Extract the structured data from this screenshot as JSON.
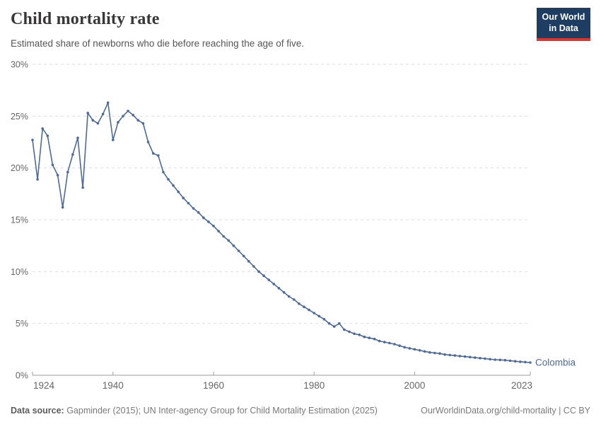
{
  "header": {
    "title": "Child mortality rate",
    "subtitle": "Estimated share of newborns who die before reaching the age of five.",
    "logo": {
      "line1": "Our World",
      "line2": "in Data"
    }
  },
  "chart_data": {
    "type": "line",
    "title": "Child mortality rate",
    "series_name": "Colombia",
    "unit": "%",
    "x": [
      1924,
      1925,
      1926,
      1927,
      1928,
      1929,
      1930,
      1931,
      1932,
      1933,
      1934,
      1935,
      1936,
      1937,
      1938,
      1939,
      1940,
      1941,
      1942,
      1943,
      1944,
      1945,
      1946,
      1947,
      1948,
      1949,
      1950,
      1951,
      1952,
      1953,
      1954,
      1955,
      1956,
      1957,
      1958,
      1959,
      1960,
      1961,
      1962,
      1963,
      1964,
      1965,
      1966,
      1967,
      1968,
      1969,
      1970,
      1971,
      1972,
      1973,
      1974,
      1975,
      1976,
      1977,
      1978,
      1979,
      1980,
      1981,
      1982,
      1983,
      1984,
      1985,
      1986,
      1987,
      1988,
      1989,
      1990,
      1991,
      1992,
      1993,
      1994,
      1995,
      1996,
      1997,
      1998,
      1999,
      2000,
      2001,
      2002,
      2003,
      2004,
      2005,
      2006,
      2007,
      2008,
      2009,
      2010,
      2011,
      2012,
      2013,
      2014,
      2015,
      2016,
      2017,
      2018,
      2019,
      2020,
      2021,
      2022,
      2023
    ],
    "values": [
      22.7,
      18.9,
      23.8,
      23.1,
      20.3,
      19.3,
      16.2,
      19.6,
      21.3,
      22.9,
      18.1,
      25.3,
      24.6,
      24.3,
      25.2,
      26.3,
      22.7,
      24.4,
      25.0,
      25.5,
      25.1,
      24.6,
      24.3,
      22.5,
      21.4,
      21.2,
      19.6,
      18.9,
      18.3,
      17.7,
      17.1,
      16.6,
      16.1,
      15.7,
      15.2,
      14.8,
      14.4,
      13.9,
      13.4,
      13.0,
      12.5,
      12.0,
      11.5,
      11.0,
      10.5,
      10.0,
      9.6,
      9.2,
      8.8,
      8.4,
      8.0,
      7.6,
      7.3,
      6.9,
      6.6,
      6.3,
      6.0,
      5.7,
      5.4,
      5.0,
      4.7,
      5.0,
      4.4,
      4.2,
      4.0,
      3.9,
      3.7,
      3.6,
      3.5,
      3.3,
      3.2,
      3.1,
      3.0,
      2.85,
      2.7,
      2.6,
      2.5,
      2.4,
      2.3,
      2.2,
      2.15,
      2.1,
      2.0,
      1.95,
      1.9,
      1.85,
      1.8,
      1.75,
      1.7,
      1.65,
      1.6,
      1.55,
      1.5,
      1.48,
      1.45,
      1.4,
      1.35,
      1.3,
      1.27,
      1.23
    ],
    "xlabel": "",
    "ylabel": "",
    "ylim": [
      0,
      30
    ],
    "yticks": [
      0,
      5,
      10,
      15,
      20,
      25,
      30
    ],
    "ytick_labels": [
      "0%",
      "5%",
      "10%",
      "15%",
      "20%",
      "25%",
      "30%"
    ],
    "xticks": [
      1924,
      1940,
      1960,
      1980,
      2000,
      2023
    ],
    "grid": "horizontal-dashed",
    "legend_position": "end-of-line-label",
    "line_color": "#4c6a9c"
  },
  "footer": {
    "datasource_label": "Data source:",
    "datasource": " Gapminder (2015); UN Inter-agency Group for Child Mortality Estimation (2025)",
    "url": "OurWorldinData.org/child-mortality",
    "separator": " | ",
    "license": "CC BY"
  },
  "colors": {
    "line": "#4c6a9c",
    "grid": "#dedede",
    "axis": "#9e9e9e",
    "tick_text": "#666666",
    "logo_bg": "#1d3d63",
    "logo_red": "#e0332e"
  }
}
